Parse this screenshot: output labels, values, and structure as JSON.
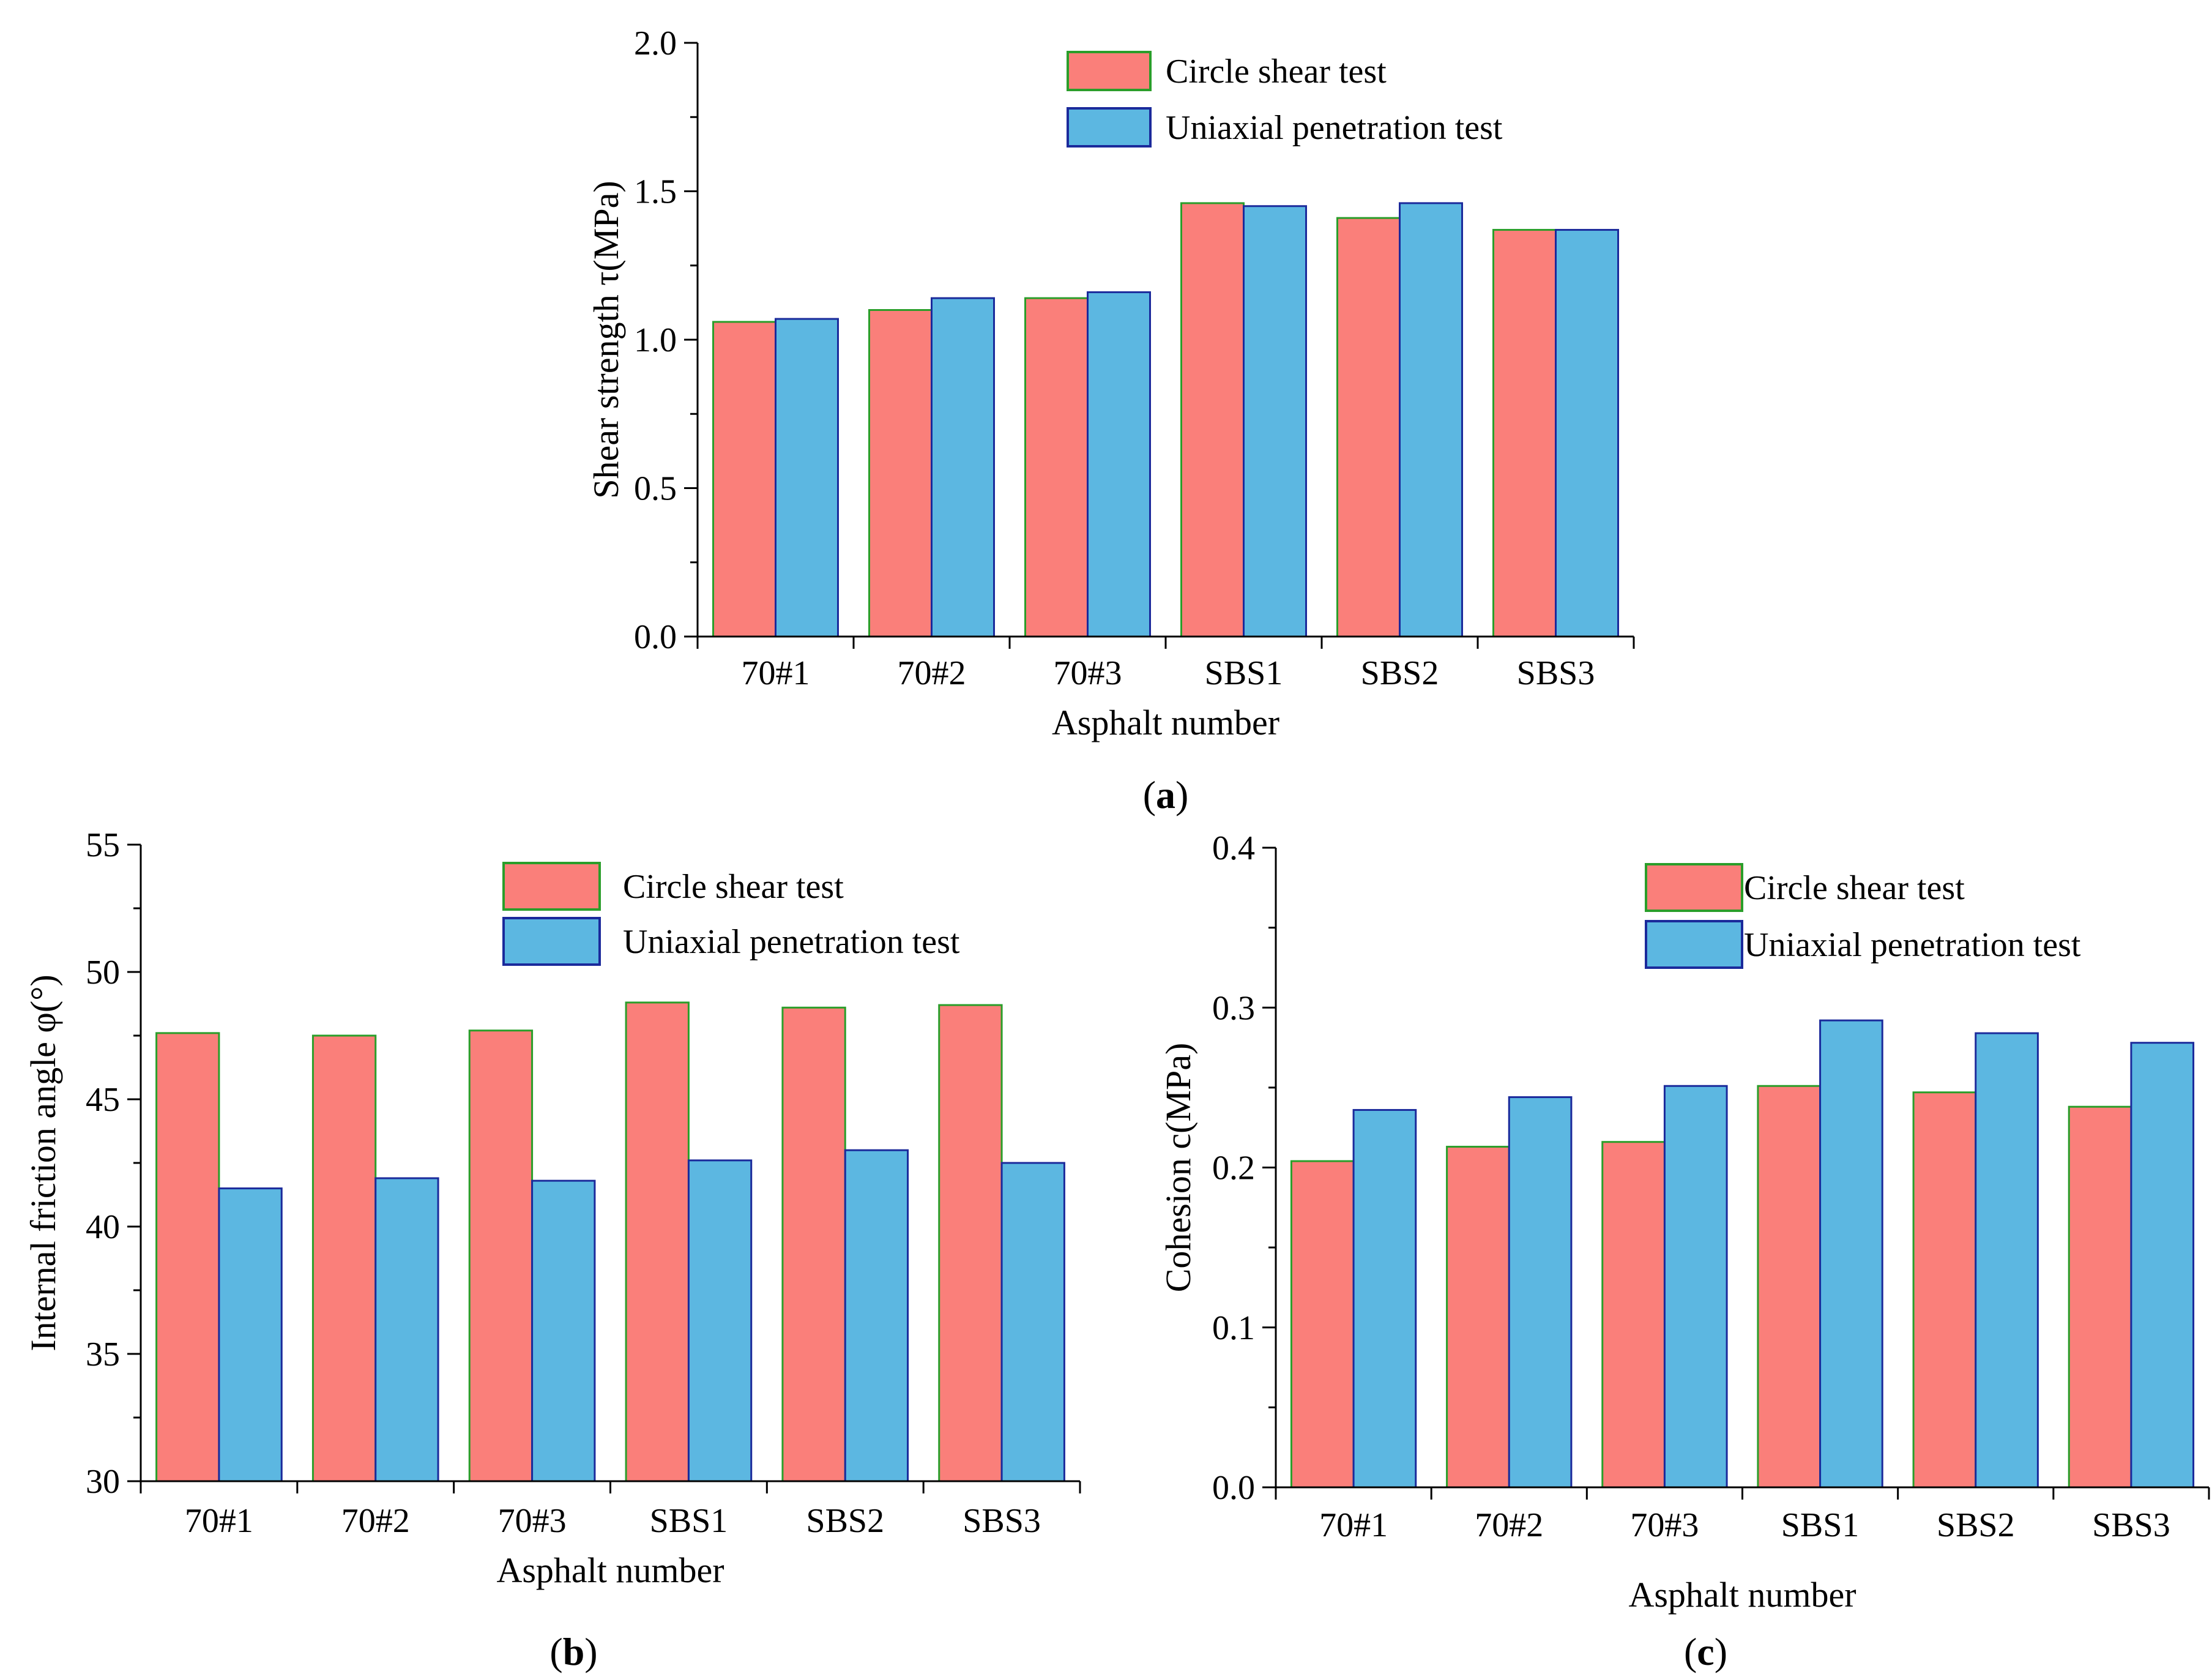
{
  "colors": {
    "series1_fill": "#FA7F7A",
    "series1_stroke": "#2A9E2A",
    "series2_fill": "#5CB7E1",
    "series2_stroke": "#1B2A9B"
  },
  "chart_data": [
    {
      "id": "a",
      "panel_label": {
        "open": "(",
        "letter": "a",
        "close": ")"
      },
      "type": "bar",
      "xlabel": "Asphalt number",
      "ylabel": "Shear strength τ(MPa)",
      "categories": [
        "70#1",
        "70#2",
        "70#3",
        "SBS1",
        "SBS2",
        "SBS3"
      ],
      "ylim": [
        0,
        2.0
      ],
      "yticks": [
        "0.0",
        "0.5",
        "1.0",
        "1.5",
        "2.0"
      ],
      "ytick_values": [
        0,
        0.5,
        1.0,
        1.5,
        2.0
      ],
      "legend_position": "top-right",
      "series": [
        {
          "name": "Circle shear test",
          "values": [
            1.06,
            1.1,
            1.14,
            1.46,
            1.41,
            1.37
          ]
        },
        {
          "name": "Uniaxial penetration test",
          "values": [
            1.07,
            1.14,
            1.16,
            1.45,
            1.46,
            1.37
          ]
        }
      ]
    },
    {
      "id": "b",
      "panel_label": {
        "open": "(",
        "letter": "b",
        "close": ")"
      },
      "type": "bar",
      "xlabel": "Asphalt number",
      "ylabel": "Internal friction angle φ(°)",
      "categories": [
        "70#1",
        "70#2",
        "70#3",
        "SBS1",
        "SBS2",
        "SBS3"
      ],
      "ylim": [
        30,
        55
      ],
      "yticks": [
        "30",
        "35",
        "40",
        "45",
        "50",
        "55"
      ],
      "ytick_values": [
        30,
        35,
        40,
        45,
        50,
        55
      ],
      "legend_position": "top-right",
      "series": [
        {
          "name": "Circle shear test",
          "values": [
            47.6,
            47.5,
            47.7,
            48.8,
            48.6,
            48.7
          ]
        },
        {
          "name": "Uniaxial penetration test",
          "values": [
            41.5,
            41.9,
            41.8,
            42.6,
            43.0,
            42.5
          ]
        }
      ]
    },
    {
      "id": "c",
      "panel_label": {
        "open": "(",
        "letter": "c",
        "close": ")"
      },
      "type": "bar",
      "xlabel": "Asphalt number",
      "ylabel": "Cohesion  c(MPa)",
      "categories": [
        "70#1",
        "70#2",
        "70#3",
        "SBS1",
        "SBS2",
        "SBS3"
      ],
      "ylim": [
        0,
        0.4
      ],
      "yticks": [
        "0.0",
        "0.1",
        "0.2",
        "0.3",
        "0.4"
      ],
      "ytick_values": [
        0,
        0.1,
        0.2,
        0.3,
        0.4
      ],
      "legend_position": "top-right",
      "series": [
        {
          "name": "Circle shear test",
          "values": [
            0.204,
            0.213,
            0.216,
            0.251,
            0.247,
            0.238
          ]
        },
        {
          "name": "Uniaxial penetration test",
          "values": [
            0.236,
            0.244,
            0.251,
            0.292,
            0.284,
            0.278
          ]
        }
      ]
    }
  ]
}
